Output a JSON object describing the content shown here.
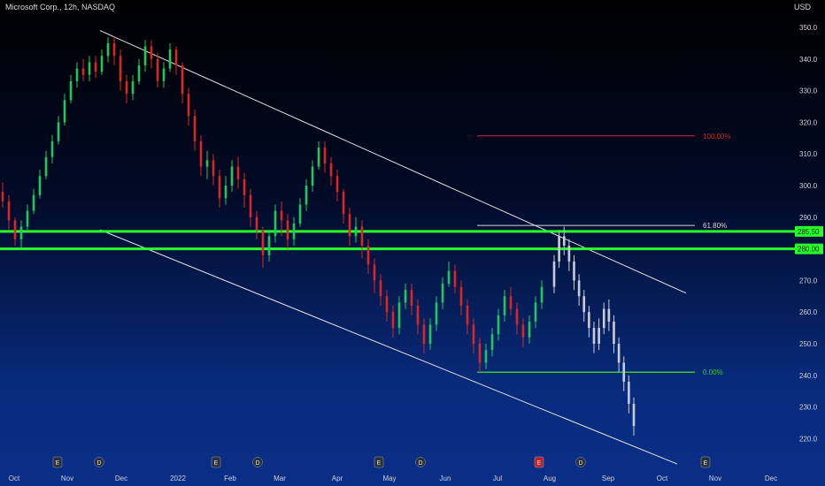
{
  "header": {
    "title": "Microsoft Corp., 12h, NASDAQ",
    "currency": "USD"
  },
  "colors": {
    "up": "#22c55e",
    "down": "#dc2626",
    "projection": "#c8ccd6",
    "level_line": "#2aff2a",
    "channel": "#e6e6e6",
    "fib_100": "#d9232a",
    "fib_618": "#d7d7d7",
    "fib_0": "#33cc33",
    "axis_text": "#cfd3dc",
    "tag_bg": "#2aff2a",
    "tag_text": "#0b2a00"
  },
  "chart_data": {
    "type": "candlestick",
    "yaxis": {
      "min": 215,
      "max": 355,
      "ticks": [
        350,
        340,
        330,
        320,
        310,
        300,
        290,
        280,
        270,
        260,
        250,
        240,
        230,
        220
      ]
    },
    "xaxis": {
      "labels": [
        "Oct",
        "Nov",
        "Dec",
        "2022",
        "Feb",
        "Mar",
        "Apr",
        "May",
        "Jun",
        "Jul",
        "Aug",
        "Sep",
        "Oct",
        "Nov",
        "Dec"
      ]
    },
    "horizontal_levels": [
      {
        "name": "level-285",
        "value": 285.5,
        "tag": "285.50"
      },
      {
        "name": "level-280",
        "value": 280.0,
        "tag": "280.00"
      }
    ],
    "fibonacci": [
      {
        "label": "100.00%",
        "value": 315.7,
        "color_key": "fib_100"
      },
      {
        "label": "61.80%",
        "value": 287.4,
        "color_key": "fib_618"
      },
      {
        "label": "0.00%",
        "value": 241.0,
        "color_key": "fib_0"
      }
    ],
    "channel": {
      "upper": {
        "from": {
          "date": "Nov 2021",
          "price": 349
        },
        "to": {
          "date": "Oct 2022",
          "price": 266
        }
      },
      "lower": {
        "from": {
          "date": "Nov 2021",
          "price": 286
        },
        "to": {
          "date": "Oct 2022",
          "price": 212
        }
      }
    },
    "events": [
      {
        "type": "E",
        "date": "Oct 2021"
      },
      {
        "type": "D",
        "date": "Nov 2021"
      },
      {
        "type": "E",
        "date": "Jan 2022"
      },
      {
        "type": "D",
        "date": "Feb 2022"
      },
      {
        "type": "E",
        "date": "Apr 2022"
      },
      {
        "type": "D",
        "date": "May 2022"
      },
      {
        "type": "E",
        "date": "Jul 2022"
      },
      {
        "type": "D",
        "date": "Aug 2022"
      },
      {
        "type": "E",
        "date": "Oct 2022"
      }
    ],
    "series": [
      {
        "name": "actual",
        "values": [
          [
            298,
            295,
            301,
            293
          ],
          [
            295,
            289,
            297,
            286
          ],
          [
            289,
            283,
            290,
            281
          ],
          [
            283,
            287,
            289,
            280
          ],
          [
            287,
            292,
            294,
            286
          ],
          [
            292,
            297,
            299,
            291
          ],
          [
            297,
            303,
            305,
            296
          ],
          [
            303,
            309,
            311,
            302
          ],
          [
            309,
            314,
            316,
            307
          ],
          [
            314,
            320,
            322,
            313
          ],
          [
            320,
            327,
            329,
            319
          ],
          [
            327,
            333,
            335,
            326
          ],
          [
            333,
            337,
            339,
            331
          ],
          [
            337,
            335,
            340,
            333
          ],
          [
            335,
            339,
            341,
            333
          ],
          [
            339,
            336,
            341,
            334
          ],
          [
            336,
            341,
            343,
            335
          ],
          [
            341,
            345,
            347,
            339
          ],
          [
            345,
            341,
            347,
            338
          ],
          [
            341,
            333,
            343,
            330
          ],
          [
            333,
            329,
            335,
            326
          ],
          [
            329,
            333,
            335,
            327
          ],
          [
            333,
            338,
            340,
            332
          ],
          [
            338,
            344,
            346,
            336
          ],
          [
            344,
            340,
            346,
            337
          ],
          [
            340,
            333,
            342,
            331
          ],
          [
            333,
            337,
            339,
            331
          ],
          [
            337,
            343,
            345,
            336
          ],
          [
            343,
            338,
            344,
            335
          ],
          [
            338,
            329,
            339,
            326
          ],
          [
            329,
            322,
            331,
            319
          ],
          [
            322,
            314,
            324,
            311
          ],
          [
            314,
            306,
            316,
            303
          ],
          [
            306,
            308,
            311,
            302
          ],
          [
            308,
            303,
            310,
            300
          ],
          [
            303,
            296,
            305,
            293
          ],
          [
            296,
            300,
            303,
            294
          ],
          [
            300,
            306,
            308,
            298
          ],
          [
            306,
            302,
            309,
            299
          ],
          [
            302,
            297,
            304,
            293
          ],
          [
            297,
            290,
            299,
            287
          ],
          [
            290,
            286,
            292,
            283
          ],
          [
            286,
            278,
            287,
            274
          ],
          [
            278,
            284,
            286,
            276
          ],
          [
            284,
            292,
            294,
            282
          ],
          [
            292,
            289,
            295,
            284
          ],
          [
            289,
            283,
            291,
            280
          ],
          [
            283,
            288,
            290,
            281
          ],
          [
            288,
            294,
            296,
            287
          ],
          [
            294,
            300,
            302,
            292
          ],
          [
            300,
            306,
            308,
            298
          ],
          [
            306,
            312,
            314,
            305
          ],
          [
            312,
            307,
            314,
            304
          ],
          [
            307,
            303,
            309,
            300
          ],
          [
            303,
            298,
            305,
            295
          ],
          [
            298,
            291,
            299,
            288
          ],
          [
            291,
            284,
            293,
            281
          ],
          [
            284,
            287,
            290,
            282
          ],
          [
            287,
            281,
            289,
            277
          ],
          [
            281,
            275,
            283,
            272
          ],
          [
            275,
            270,
            277,
            266
          ],
          [
            270,
            265,
            272,
            262
          ],
          [
            265,
            260,
            267,
            257
          ],
          [
            260,
            255,
            262,
            252
          ],
          [
            255,
            263,
            265,
            253
          ],
          [
            263,
            267,
            269,
            261
          ],
          [
            267,
            262,
            269,
            259
          ],
          [
            262,
            256,
            264,
            253
          ],
          [
            256,
            250,
            258,
            247
          ],
          [
            250,
            256,
            258,
            248
          ],
          [
            256,
            263,
            265,
            254
          ],
          [
            263,
            269,
            271,
            261
          ],
          [
            269,
            273,
            276,
            268
          ],
          [
            273,
            268,
            275,
            266
          ],
          [
            268,
            262,
            270,
            259
          ],
          [
            262,
            256,
            264,
            253
          ],
          [
            256,
            250,
            258,
            247
          ],
          [
            250,
            244,
            252,
            241
          ],
          [
            244,
            248,
            250,
            242
          ],
          [
            248,
            253,
            255,
            246
          ],
          [
            253,
            259,
            261,
            251
          ],
          [
            259,
            265,
            267,
            257
          ],
          [
            265,
            261,
            268,
            259
          ],
          [
            261,
            256,
            263,
            253
          ],
          [
            256,
            252,
            258,
            249
          ],
          [
            252,
            257,
            259,
            250
          ],
          [
            257,
            263,
            265,
            255
          ],
          [
            263,
            268,
            270,
            261
          ]
        ]
      },
      {
        "name": "projection",
        "values": [
          [
            268,
            276,
            278,
            266
          ],
          [
            276,
            284,
            286,
            274
          ],
          [
            284,
            281,
            287,
            278
          ],
          [
            281,
            276,
            283,
            273
          ],
          [
            276,
            270,
            278,
            267
          ],
          [
            270,
            265,
            272,
            262
          ],
          [
            265,
            260,
            267,
            257
          ],
          [
            260,
            255,
            262,
            252
          ],
          [
            255,
            250,
            257,
            247
          ],
          [
            250,
            255,
            258,
            248
          ],
          [
            255,
            261,
            263,
            253
          ],
          [
            261,
            257,
            264,
            254
          ],
          [
            257,
            250,
            259,
            247
          ],
          [
            250,
            244,
            252,
            241
          ],
          [
            244,
            238,
            246,
            235
          ],
          [
            238,
            231,
            240,
            228
          ],
          [
            231,
            224,
            233,
            221
          ]
        ]
      }
    ]
  }
}
